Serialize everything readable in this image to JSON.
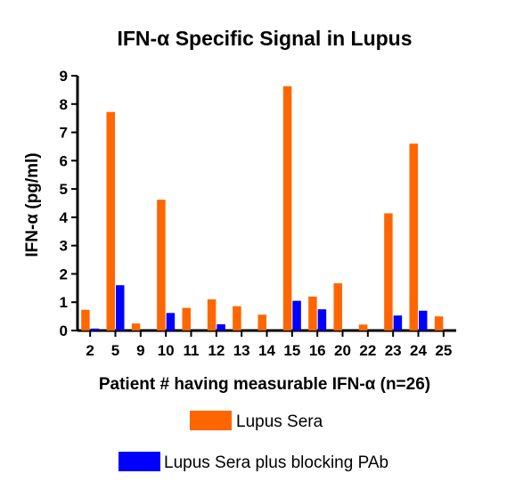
{
  "chart_data": {
    "type": "bar",
    "title": "IFN-α Specific Signal in Lupus",
    "xlabel": "Patient # having measurable IFN-α (n=26)",
    "ylabel": "IFN-α (pg/ml)",
    "ylim": [
      0,
      9
    ],
    "yticks": [
      "0",
      "1",
      "2",
      "3",
      "4",
      "5",
      "6",
      "7",
      "8",
      "9"
    ],
    "categories": [
      "2",
      "5",
      "9",
      "10",
      "11",
      "12",
      "13",
      "14",
      "15",
      "16",
      "20",
      "22",
      "23",
      "24",
      "25"
    ],
    "series": [
      {
        "name": "Lupus Sera",
        "color": "#ff6600",
        "values": [
          0.73,
          7.72,
          0.25,
          4.62,
          0.8,
          1.1,
          0.86,
          0.56,
          8.63,
          1.2,
          1.67,
          0.21,
          4.14,
          6.6,
          0.5
        ]
      },
      {
        "name": "Lupus Sera plus blocking PAb",
        "color": "#0000ff",
        "values": [
          0.07,
          1.6,
          0,
          0.62,
          0,
          0.22,
          0,
          0,
          1.05,
          0.75,
          0,
          0,
          0.53,
          0.7,
          0
        ]
      }
    ],
    "grid": false,
    "legend_position": "bottom"
  }
}
